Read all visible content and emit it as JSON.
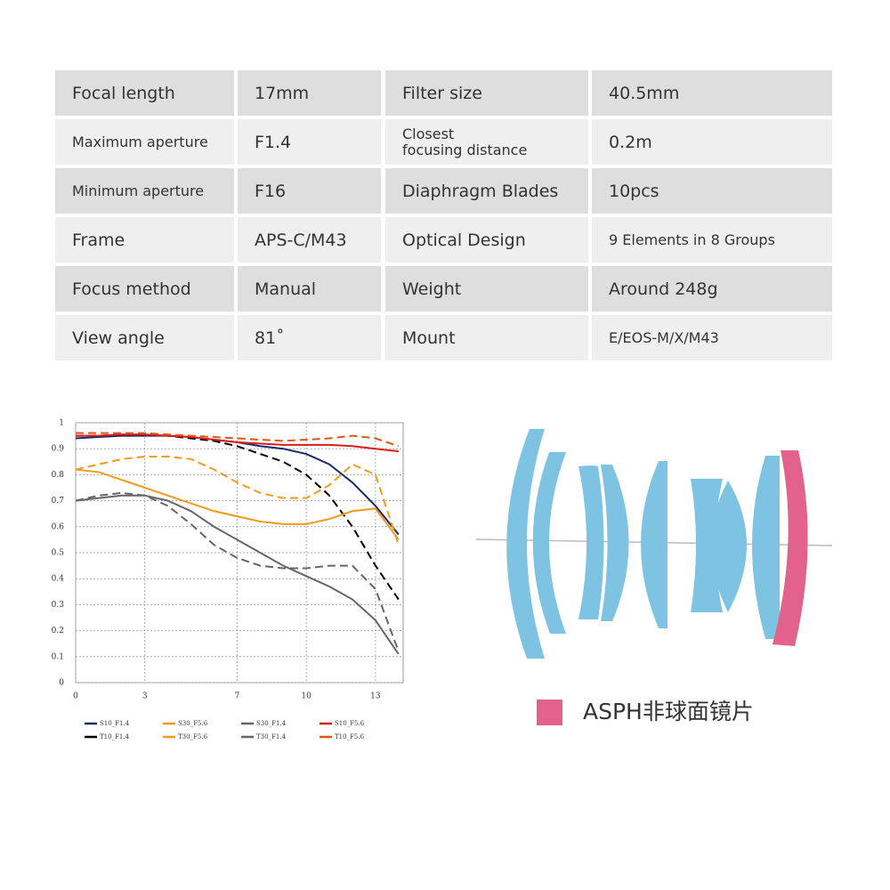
{
  "table": {
    "rows": [
      [
        "Focal length",
        "17mm",
        "Filter size",
        "40.5mm"
      ],
      [
        "Maximum aperture",
        "F1.4",
        "Closest\nfocusing distance",
        "0.2m"
      ],
      [
        "Minimum aperture",
        "F16",
        "Diaphragm Blades",
        "10pcs"
      ],
      [
        "Frame",
        "APS-C/M43",
        "Optical Design",
        "9 Elements in 8 Groups"
      ],
      [
        "Focus method",
        "Manual",
        "Weight",
        "Around 248g"
      ],
      [
        "View angle",
        "81˚",
        "Mount",
        "E/EOS-M/X/M43"
      ]
    ]
  },
  "chart_data": {
    "type": "line",
    "x": [
      0,
      1,
      2,
      3,
      4,
      5,
      6,
      7,
      8,
      9,
      10,
      11,
      12,
      13,
      14
    ],
    "xlim": [
      0,
      14.2
    ],
    "xticks": [
      0,
      3,
      7,
      10,
      13
    ],
    "ylim": [
      0,
      1
    ],
    "yticks": [
      0,
      0.1,
      0.2,
      0.3,
      0.4,
      0.5,
      0.6,
      0.7,
      0.8,
      0.9,
      1
    ],
    "grid": true,
    "series": [
      {
        "name": "S10_F1.4",
        "color": "#1a2a6c",
        "dashed": false,
        "values": [
          0.94,
          0.945,
          0.95,
          0.95,
          0.95,
          0.945,
          0.935,
          0.925,
          0.91,
          0.9,
          0.88,
          0.84,
          0.77,
          0.68,
          0.57
        ]
      },
      {
        "name": "T10_F1.4",
        "color": "#000000",
        "dashed": true,
        "values": [
          0.95,
          0.95,
          0.955,
          0.955,
          0.95,
          0.94,
          0.93,
          0.91,
          0.88,
          0.85,
          0.8,
          0.72,
          0.6,
          0.45,
          0.32
        ]
      },
      {
        "name": "S30_F5.6",
        "color": "#f29a1e",
        "dashed": false,
        "values": [
          0.82,
          0.81,
          0.78,
          0.75,
          0.72,
          0.69,
          0.66,
          0.64,
          0.62,
          0.61,
          0.61,
          0.63,
          0.66,
          0.67,
          0.55
        ]
      },
      {
        "name": "T30_F5.6",
        "color": "#f29a1e",
        "dashed": true,
        "values": [
          0.82,
          0.84,
          0.86,
          0.87,
          0.87,
          0.86,
          0.82,
          0.77,
          0.73,
          0.71,
          0.71,
          0.76,
          0.84,
          0.8,
          0.53
        ]
      },
      {
        "name": "S30_F1.4",
        "color": "#666666",
        "dashed": false,
        "values": [
          0.7,
          0.71,
          0.72,
          0.72,
          0.7,
          0.66,
          0.6,
          0.55,
          0.5,
          0.45,
          0.41,
          0.37,
          0.32,
          0.24,
          0.11
        ]
      },
      {
        "name": "T30_F1.4",
        "color": "#666666",
        "dashed": true,
        "values": [
          0.7,
          0.72,
          0.73,
          0.72,
          0.68,
          0.61,
          0.53,
          0.48,
          0.45,
          0.44,
          0.44,
          0.45,
          0.45,
          0.36,
          0.12
        ]
      },
      {
        "name": "S10_F5.6",
        "color": "#d91e18",
        "dashed": false,
        "values": [
          0.95,
          0.95,
          0.955,
          0.955,
          0.95,
          0.945,
          0.935,
          0.925,
          0.92,
          0.915,
          0.915,
          0.915,
          0.91,
          0.9,
          0.89
        ]
      },
      {
        "name": "T10_F5.6",
        "color": "#e0561a",
        "dashed": true,
        "values": [
          0.96,
          0.96,
          0.96,
          0.96,
          0.955,
          0.95,
          0.945,
          0.94,
          0.935,
          0.93,
          0.935,
          0.94,
          0.95,
          0.94,
          0.91
        ]
      }
    ]
  },
  "lens_legend": "ASPH非球面镜片"
}
